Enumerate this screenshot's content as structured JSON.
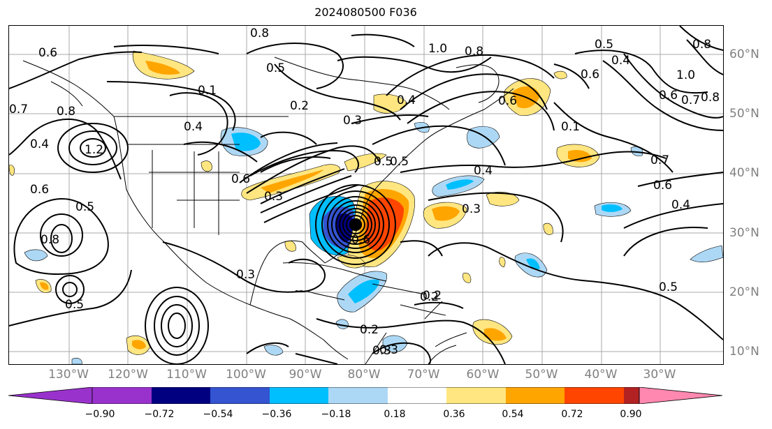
{
  "title": "2024080500 F036",
  "map": {
    "lon_labels": [
      "130°W",
      "120°W",
      "110°W",
      "100°W",
      "90°W",
      "80°W",
      "70°W",
      "60°W",
      "50°W",
      "40°W",
      "30°W"
    ],
    "lat_labels": [
      "60°N",
      "50°N",
      "40°N",
      "30°N",
      "20°N",
      "10°N"
    ],
    "grid": true,
    "contour_color": "#000000",
    "contour_labels": [
      {
        "text": "0.8"
      },
      {
        "text": "0.5"
      },
      {
        "text": "1.0"
      },
      {
        "text": "0.8"
      },
      {
        "text": "0.5"
      },
      {
        "text": "0.4"
      },
      {
        "text": "0.8"
      },
      {
        "text": "1.0"
      },
      {
        "text": "0.6"
      },
      {
        "text": "0.7"
      },
      {
        "text": "0.8"
      },
      {
        "text": "0.6"
      },
      {
        "text": "0.2"
      },
      {
        "text": "0.3"
      },
      {
        "text": "0.4"
      },
      {
        "text": "0.1"
      },
      {
        "text": "0.6"
      },
      {
        "text": "0.4"
      },
      {
        "text": "0.3"
      },
      {
        "text": "0.7"
      },
      {
        "text": "0.6"
      },
      {
        "text": "0.4"
      },
      {
        "text": "0.5"
      },
      {
        "text": "0.3"
      },
      {
        "text": "0.2"
      },
      {
        "text": "0.5"
      },
      {
        "text": "0.3"
      },
      {
        "text": "0.2"
      },
      {
        "text": "0.5"
      },
      {
        "text": "0.8"
      },
      {
        "text": "0.6"
      },
      {
        "text": "0.4"
      },
      {
        "text": "1.2"
      },
      {
        "text": "0.6"
      },
      {
        "text": "0.5"
      },
      {
        "text": "0.8"
      },
      {
        "text": "0.7"
      },
      {
        "text": "0.6"
      },
      {
        "text": "0.4"
      },
      {
        "text": "0.2"
      },
      {
        "text": "0.6"
      },
      {
        "text": "0.3"
      },
      {
        "text": "0.1"
      },
      {
        "text": "0.5"
      },
      {
        "text": "0.3"
      }
    ],
    "tropical_low_marker": "filled-circle"
  },
  "colorbar": {
    "ticks": [
      "−0.90",
      "−0.72",
      "−0.54",
      "−0.36",
      "−0.18",
      "0.18",
      "0.36",
      "0.54",
      "0.72",
      "0.90"
    ],
    "colors": [
      "#9932cc",
      "#000080",
      "#3454d1",
      "#00bfff",
      "#add8f5",
      "#ffffff",
      "#ffe680",
      "#ffa500",
      "#ff4500",
      "#b22222",
      "#ff88b0"
    ]
  }
}
